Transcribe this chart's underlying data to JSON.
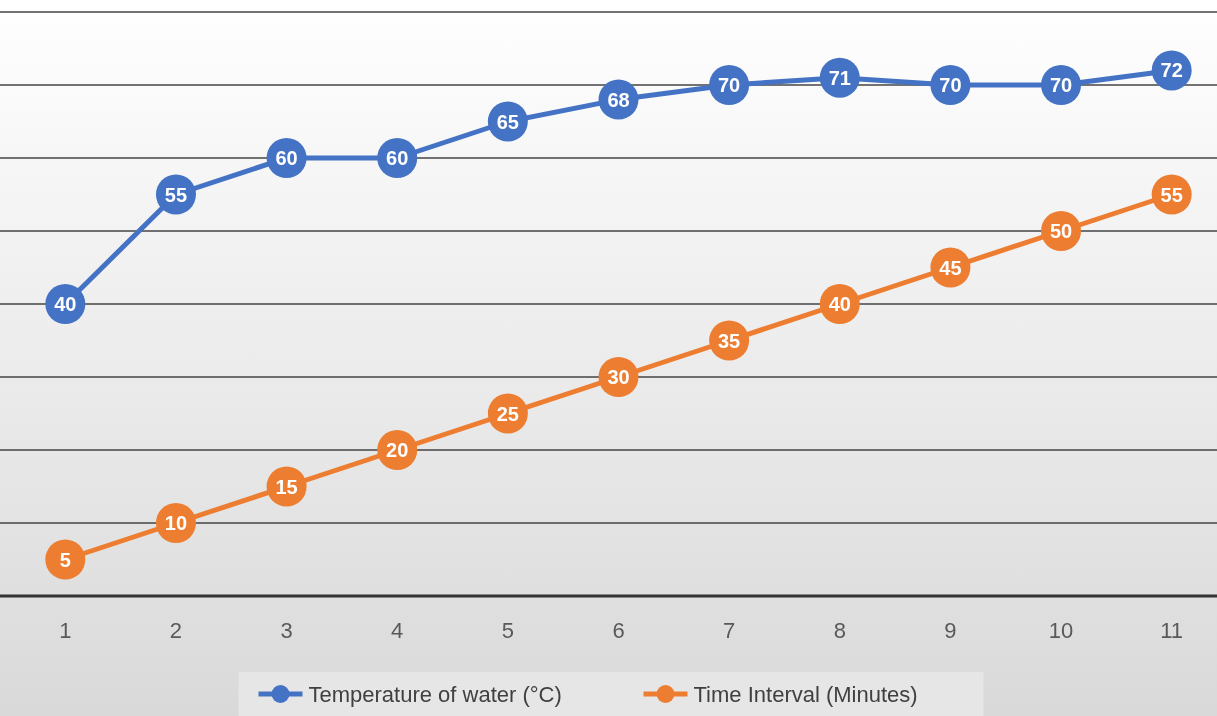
{
  "chart_data": {
    "type": "line",
    "categories": [
      "1",
      "2",
      "3",
      "4",
      "5",
      "6",
      "7",
      "8",
      "9",
      "10",
      "11"
    ],
    "series": [
      {
        "name": "Temperature of water (°C)",
        "color": "#4472c4",
        "values": [
          40,
          55,
          60,
          60,
          65,
          68,
          70,
          71,
          70,
          70,
          72
        ]
      },
      {
        "name": "Time Interval (Minutes)",
        "color": "#ed7d31",
        "values": [
          5,
          10,
          15,
          20,
          25,
          30,
          35,
          40,
          45,
          50,
          55
        ]
      }
    ],
    "ylim": [
      0,
      80
    ],
    "yticks": [
      {
        "value": 0,
        "label": null
      },
      {
        "value": 10,
        "label": null
      },
      {
        "value": 20,
        "label": null
      },
      {
        "value": 30,
        "label": null
      },
      {
        "value": 40,
        "label": null
      },
      {
        "value": 50,
        "label": null
      },
      {
        "value": 60,
        "label": null
      },
      {
        "value": 70,
        "label": null
      },
      {
        "value": 80,
        "label": null
      }
    ],
    "tick_labels": "x",
    "grid": "y",
    "legend": "bottom",
    "marker": "circle",
    "line_style": "solid",
    "data_labels": true
  }
}
